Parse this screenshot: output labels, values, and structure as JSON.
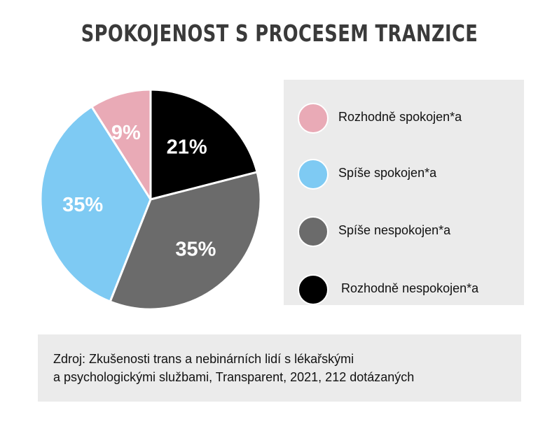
{
  "chart_data": {
    "type": "pie",
    "title": "SPOKOJENOST S PROCESEM TRANZICE",
    "categories": [
      "Rozhodně spokojen*a",
      "Spíše spokojen*a",
      "Spíše nespokojen*a",
      "Rozhodně nespokojen*a"
    ],
    "values": [
      9,
      35,
      35,
      21
    ],
    "value_labels": [
      "9%",
      "35%",
      "35%",
      "21%"
    ],
    "colors": [
      "#e9aab6",
      "#7ecaf3",
      "#6b6b6b",
      "#000000"
    ],
    "legend_position": "right"
  },
  "source": {
    "line1": "Zdroj: Zkušenosti trans a nebinárních lidí s lékařskými",
    "line2": "a psychologickými službami, Transparent, 2021, 212 dotázaných"
  }
}
